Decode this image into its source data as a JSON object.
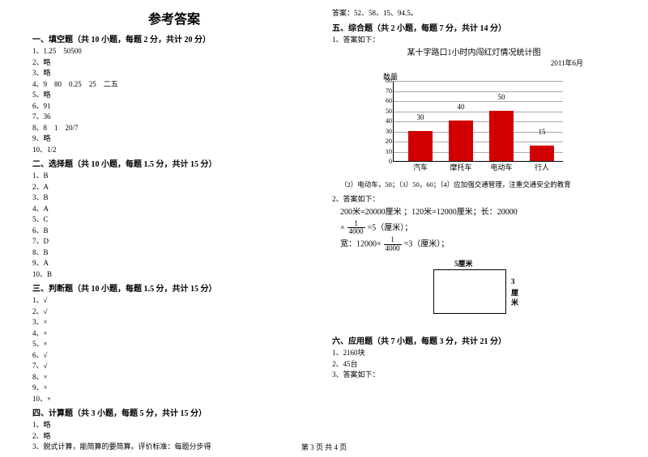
{
  "title": "参考答案",
  "section1": {
    "head": "一、填空题（共 10 小题，每题 2 分，共计 20 分）",
    "items": [
      "1、1.25　50500",
      "2、略",
      "3、略",
      "4、9　80　0.25　25　二五",
      "5、略",
      "6、91",
      "7、36",
      "8、8　1　20/7",
      "9、略",
      "10、1/2"
    ]
  },
  "section2": {
    "head": "二、选择题（共 10 小题，每题 1.5 分，共计 15 分）",
    "items": [
      "1、B",
      "2、A",
      "3、B",
      "4、A",
      "5、C",
      "6、B",
      "7、D",
      "8、B",
      "9、A",
      "10、B"
    ]
  },
  "section3": {
    "head": "三、判断题（共 10 小题，每题 1.5 分，共计 15 分）",
    "items": [
      "1、√",
      "2、√",
      "3、×",
      "4、×",
      "5、×",
      "6、√",
      "7、√",
      "8、×",
      "9、×",
      "10、×"
    ]
  },
  "section4": {
    "head": "四、计算题（共 3 小题，每题 5 分，共计 15 分）",
    "items": [
      "1、略",
      "2、略",
      "3、脱式计算，能简算的要简算。评价标准：每题分步得"
    ]
  },
  "topAns": "答案：52、58、15、94.5。",
  "section5": {
    "head": "五、综合题（共 2 小题，每题 7 分，共计 14 分）",
    "lead": "1、答案如下：",
    "chartTitle": "某十字路口1小时内闯红灯情况统计图",
    "chartDate": "2011年6月",
    "yAxisLabel": "数量",
    "yMax": 80,
    "yStep": 10,
    "bars": [
      {
        "label": "汽车",
        "value": 30,
        "valText": "30"
      },
      {
        "label": "摩托车",
        "value": 40,
        "valText": "40"
      },
      {
        "label": "电动车",
        "value": 50,
        "valText": "50"
      },
      {
        "label": "行人",
        "value": 15,
        "valText": "15"
      }
    ],
    "barColor": "#d00000",
    "gridColor": "#aaaaaa",
    "note": "（2）电动车，50；（3）50，60；（4）应加强交通管理，注重交通安全的教育",
    "ans2": {
      "lead": "2、答案如下：",
      "l1_a": "200米=20000厘米 ；120米=12000厘米；长：20000",
      "l1_frac_n": "1",
      "l1_frac_d": "4000",
      "l1_b": "=5（厘米）；",
      "l2_a": "宽：12000×",
      "l2_frac_n": "1",
      "l2_frac_d": "4000",
      "l2_b": "=3（厘米）；",
      "rectTop": "5厘米",
      "rectRight1": "3",
      "rectRight2": "厘",
      "rectRight3": "米"
    }
  },
  "section6": {
    "head": "六、应用题（共 7 小题，每题 3 分，共计 21 分）",
    "items": [
      "1、2160块",
      "2、45台",
      "3、答案如下："
    ]
  },
  "footer": "第 3 页 共 4 页"
}
